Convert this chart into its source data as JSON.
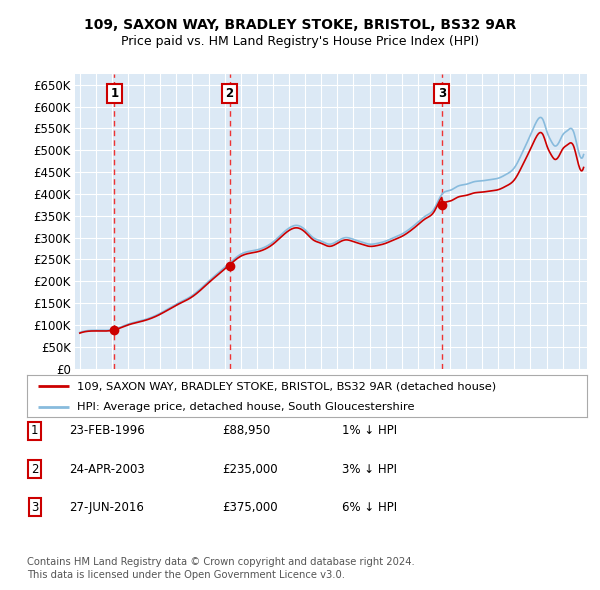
{
  "title1": "109, SAXON WAY, BRADLEY STOKE, BRISTOL, BS32 9AR",
  "title2": "Price paid vs. HM Land Registry's House Price Index (HPI)",
  "ylim": [
    0,
    675000
  ],
  "yticks": [
    0,
    50000,
    100000,
    150000,
    200000,
    250000,
    300000,
    350000,
    400000,
    450000,
    500000,
    550000,
    600000,
    650000
  ],
  "ytick_labels": [
    "£0",
    "£50K",
    "£100K",
    "£150K",
    "£200K",
    "£250K",
    "£300K",
    "£350K",
    "£400K",
    "£450K",
    "£500K",
    "£550K",
    "£600K",
    "£650K"
  ],
  "purchases": [
    {
      "date": 1996.15,
      "price": 88950,
      "label": "1"
    },
    {
      "date": 2003.31,
      "price": 235000,
      "label": "2"
    },
    {
      "date": 2016.49,
      "price": 375000,
      "label": "3"
    }
  ],
  "purchase_color": "#cc0000",
  "hpi_line_color": "#88bbdd",
  "legend_label_property": "109, SAXON WAY, BRADLEY STOKE, BRISTOL, BS32 9AR (detached house)",
  "legend_label_hpi": "HPI: Average price, detached house, South Gloucestershire",
  "footer1": "Contains HM Land Registry data © Crown copyright and database right 2024.",
  "footer2": "This data is licensed under the Open Government Licence v3.0.",
  "table_rows": [
    {
      "num": "1",
      "date": "23-FEB-1996",
      "price": "£88,950",
      "hpi": "1% ↓ HPI"
    },
    {
      "num": "2",
      "date": "24-APR-2003",
      "price": "£235,000",
      "hpi": "3% ↓ HPI"
    },
    {
      "num": "3",
      "date": "27-JUN-2016",
      "price": "£375,000",
      "hpi": "6% ↓ HPI"
    }
  ],
  "xlim_start": 1993.7,
  "xlim_end": 2025.5,
  "xticks": [
    1994,
    1995,
    1996,
    1997,
    1998,
    1999,
    2000,
    2001,
    2002,
    2003,
    2004,
    2005,
    2006,
    2007,
    2008,
    2009,
    2010,
    2011,
    2012,
    2013,
    2014,
    2015,
    2016,
    2017,
    2018,
    2019,
    2020,
    2021,
    2022,
    2023,
    2024,
    2025
  ],
  "bg_color": "#dce9f5",
  "grid_color": "#ffffff"
}
